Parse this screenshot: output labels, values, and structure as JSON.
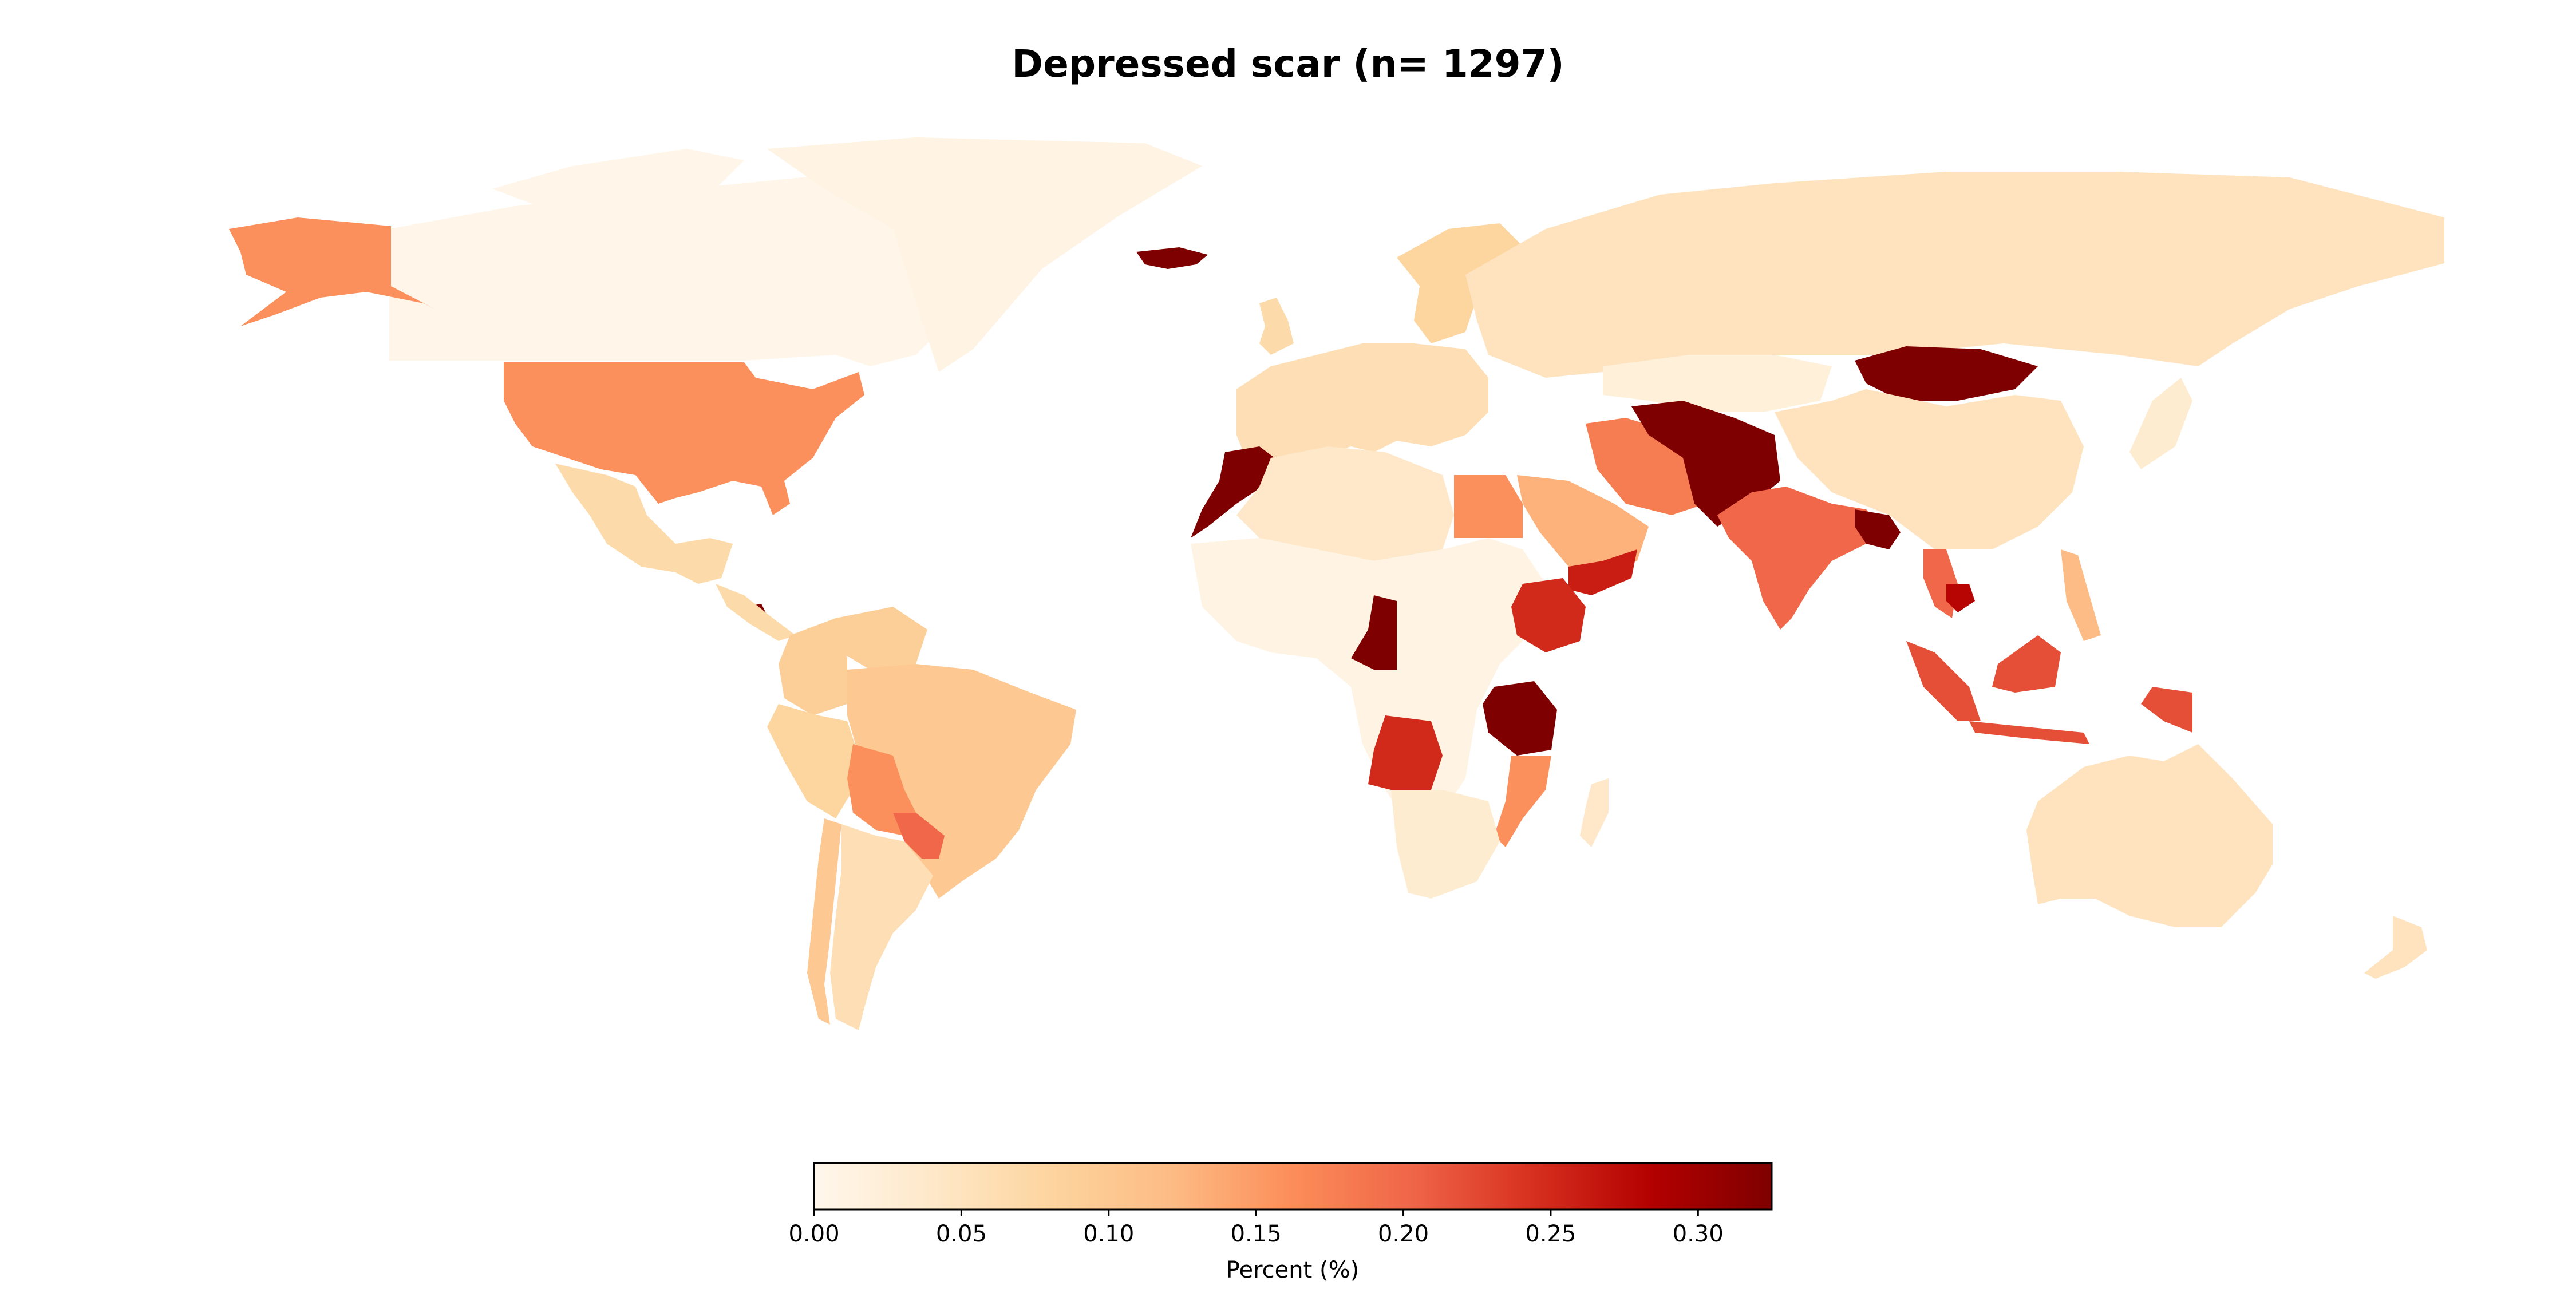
{
  "title": "Depressed scar (n= 1297)",
  "colorbar": {
    "label": "Percent (%)",
    "min": 0,
    "max": 0.325,
    "colormap": "OrRd",
    "stops": [
      "#fff7ec",
      "#fee8c8",
      "#fdd49e",
      "#fdbb84",
      "#fc8d59",
      "#ef6548",
      "#d7301f",
      "#b30000",
      "#7f0000"
    ],
    "ticks": [
      {
        "value": 0.0,
        "label": "0.00"
      },
      {
        "value": 0.05,
        "label": "0.05"
      },
      {
        "value": 0.1,
        "label": "0.10"
      },
      {
        "value": 0.15,
        "label": "0.15"
      },
      {
        "value": 0.2,
        "label": "0.20"
      },
      {
        "value": 0.25,
        "label": "0.25"
      },
      {
        "value": 0.3,
        "label": "0.30"
      }
    ]
  },
  "map_data": {
    "metric": "percent",
    "countries": [
      {
        "id": "canada",
        "value": 0.005
      },
      {
        "id": "greenland",
        "value": 0.01
      },
      {
        "id": "alaska",
        "value": 0.16
      },
      {
        "id": "usa",
        "value": 0.16
      },
      {
        "id": "mexico",
        "value": 0.07
      },
      {
        "id": "guatemala",
        "value": 0.33
      },
      {
        "id": "colombia",
        "value": 0.09
      },
      {
        "id": "venezuela",
        "value": 0.09
      },
      {
        "id": "brazil",
        "value": 0.1
      },
      {
        "id": "peru",
        "value": 0.08
      },
      {
        "id": "bolivia",
        "value": 0.16
      },
      {
        "id": "paraguay",
        "value": 0.2
      },
      {
        "id": "chile",
        "value": 0.1
      },
      {
        "id": "argentina",
        "value": 0.06
      },
      {
        "id": "iceland",
        "value": 0.33
      },
      {
        "id": "uk",
        "value": 0.07
      },
      {
        "id": "europe",
        "value": 0.06
      },
      {
        "id": "scandinavia",
        "value": 0.08
      },
      {
        "id": "russia",
        "value": 0.05
      },
      {
        "id": "kazakhstan",
        "value": 0.02
      },
      {
        "id": "mongolia",
        "value": 0.33
      },
      {
        "id": "china",
        "value": 0.05
      },
      {
        "id": "morocco",
        "value": 0.33
      },
      {
        "id": "north-africa",
        "value": 0.04
      },
      {
        "id": "egypt",
        "value": 0.16
      },
      {
        "id": "saudi-arabia",
        "value": 0.13
      },
      {
        "id": "yemen",
        "value": 0.26
      },
      {
        "id": "iran",
        "value": 0.18
      },
      {
        "id": "afghanistan",
        "value": 0.33
      },
      {
        "id": "india",
        "value": 0.2
      },
      {
        "id": "bangladesh",
        "value": 0.33
      },
      {
        "id": "sahel",
        "value": 0.01
      },
      {
        "id": "cameroon",
        "value": 0.33
      },
      {
        "id": "ethiopia",
        "value": 0.25
      },
      {
        "id": "tanzania",
        "value": 0.33
      },
      {
        "id": "angola",
        "value": 0.25
      },
      {
        "id": "mozambique",
        "value": 0.16
      },
      {
        "id": "southern-africa",
        "value": 0.03
      },
      {
        "id": "madagascar",
        "value": 0.04
      },
      {
        "id": "thailand",
        "value": 0.2
      },
      {
        "id": "cambodia",
        "value": 0.28
      },
      {
        "id": "philippines",
        "value": 0.12
      },
      {
        "id": "indonesia",
        "value": 0.22
      },
      {
        "id": "new-guinea",
        "value": 0.22
      },
      {
        "id": "japan",
        "value": 0.03
      },
      {
        "id": "australia",
        "value": 0.05
      },
      {
        "id": "new-zealand",
        "value": 0.05
      }
    ]
  }
}
